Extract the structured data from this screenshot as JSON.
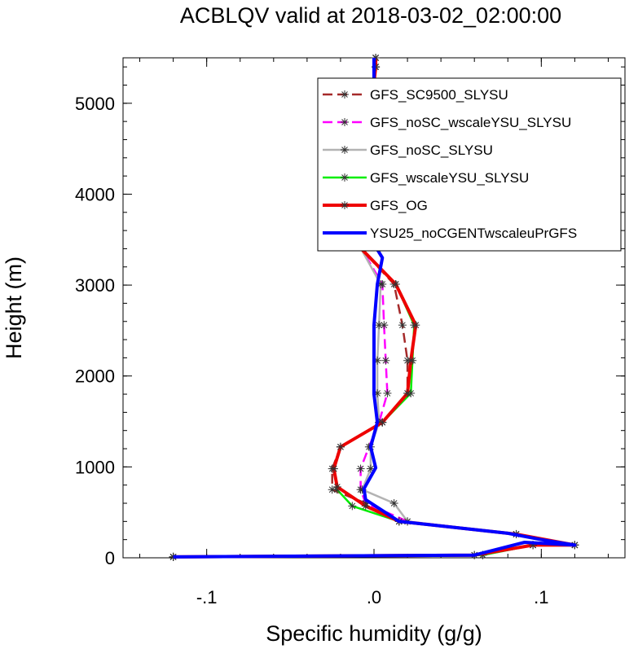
{
  "chart_data": {
    "type": "line",
    "title": "ACBLQV valid at 2018-03-02_02:00:00",
    "xlabel": "Specific humidity (g/g)",
    "ylabel": "Height (m)",
    "xlim": [
      -0.15,
      0.15
    ],
    "ylim": [
      0,
      5500
    ],
    "xticks": [
      {
        "value": -0.1,
        "label": "-.1"
      },
      {
        "value": 0.0,
        "label": ".0"
      },
      {
        "value": 0.1,
        "label": ".1"
      }
    ],
    "yticks": [
      {
        "value": 0,
        "label": "0"
      },
      {
        "value": 1000,
        "label": "1000"
      },
      {
        "value": 2000,
        "label": "2000"
      },
      {
        "value": 3000,
        "label": "3000"
      },
      {
        "value": 4000,
        "label": "4000"
      },
      {
        "value": 5000,
        "label": "5000"
      }
    ],
    "legend_position": "top-right",
    "grid": false,
    "series": [
      {
        "name": "GFS_SC9500_SLYSU",
        "color": "#a52a2a",
        "dash": true,
        "markers": true,
        "x": [
          -0.12,
          0.06,
          0.095,
          0.12,
          0.085,
          0.015,
          -0.005,
          -0.025,
          -0.025,
          -0.02,
          0.005,
          0.02,
          0.02,
          0.017,
          0.012,
          -0.015,
          -0.012,
          -0.005,
          0.0,
          0.0,
          0.001,
          0.001
        ],
        "y": [
          10,
          30,
          140,
          140,
          260,
          400,
          600,
          750,
          980,
          1220,
          1490,
          1810,
          2170,
          2560,
          3010,
          3540,
          3700,
          4080,
          4680,
          5230,
          5400,
          5500
        ]
      },
      {
        "name": "GFS_noSC_wscaleYSU_SLYSU",
        "color": "#ff00ff",
        "dash": true,
        "markers": true,
        "x": [
          -0.12,
          0.065,
          0.095,
          0.12,
          0.085,
          0.02,
          -0.005,
          -0.008,
          -0.008,
          -0.003,
          0.003,
          0.008,
          0.007,
          0.006,
          0.005,
          -0.012,
          -0.01,
          -0.004,
          0.0,
          0.0,
          0.001,
          0.001
        ],
        "y": [
          10,
          30,
          140,
          140,
          260,
          400,
          600,
          750,
          980,
          1220,
          1490,
          1810,
          2170,
          2560,
          3010,
          3540,
          3700,
          4080,
          4680,
          5230,
          5400,
          5500
        ]
      },
      {
        "name": "GFS_noSC_SLYSU",
        "color": "#b3b3b3",
        "dash": false,
        "markers": true,
        "x": [
          -0.12,
          0.065,
          0.095,
          0.12,
          0.085,
          0.02,
          0.012,
          -0.007,
          -0.002,
          -0.002,
          0.003,
          0.002,
          0.002,
          0.003,
          0.004,
          -0.012,
          -0.01,
          -0.004,
          0.0,
          0.0,
          0.001,
          0.001
        ],
        "y": [
          10,
          30,
          140,
          140,
          260,
          400,
          600,
          750,
          980,
          1220,
          1490,
          1810,
          2170,
          2560,
          3010,
          3540,
          3700,
          4080,
          4680,
          5230,
          5400,
          5500
        ]
      },
      {
        "name": "GFS_wscaleYSU_SLYSU",
        "color": "#00ee00",
        "dash": false,
        "markers": true,
        "x": [
          -0.12,
          0.065,
          0.095,
          0.12,
          0.085,
          0.015,
          -0.013,
          -0.022,
          -0.024,
          -0.02,
          0.005,
          0.022,
          0.023,
          0.024,
          0.013,
          -0.015,
          -0.012,
          -0.005,
          0.0,
          0.0,
          0.001,
          0.001
        ],
        "y": [
          10,
          30,
          140,
          140,
          260,
          400,
          570,
          750,
          980,
          1220,
          1490,
          1810,
          2170,
          2560,
          3010,
          3540,
          3700,
          4080,
          4680,
          5230,
          5400,
          5500
        ]
      },
      {
        "name": "GFS_OG",
        "color": "#ee0000",
        "dash": false,
        "markers": true,
        "x": [
          -0.12,
          0.06,
          0.095,
          0.12,
          0.085,
          0.015,
          -0.005,
          -0.022,
          -0.024,
          -0.02,
          0.005,
          0.02,
          0.022,
          0.025,
          0.013,
          -0.015,
          -0.012,
          -0.005,
          0.0,
          0.0,
          0.001,
          0.001
        ],
        "y": [
          10,
          30,
          140,
          140,
          260,
          400,
          570,
          780,
          980,
          1220,
          1490,
          1810,
          2170,
          2560,
          3010,
          3540,
          3700,
          4080,
          4680,
          5230,
          5400,
          5500
        ]
      },
      {
        "name": "YSU25_noCGENTwscaleuPrGFS",
        "color": "#0000ff",
        "dash": false,
        "markers": false,
        "x": [
          -0.12,
          0.06,
          0.09,
          0.12,
          0.1,
          0.08,
          0.015,
          -0.005,
          -0.006,
          0.001,
          -0.002,
          0.002,
          0.0,
          0.0,
          0.0,
          0.002,
          0.005,
          -0.003,
          -0.01,
          -0.004,
          0.0,
          0.0,
          0.0
        ],
        "y": [
          10,
          30,
          170,
          140,
          200,
          270,
          400,
          640,
          760,
          990,
          1220,
          1490,
          1800,
          2170,
          2560,
          3010,
          3300,
          3540,
          3700,
          4080,
          4680,
          5230,
          5500
        ]
      }
    ]
  }
}
